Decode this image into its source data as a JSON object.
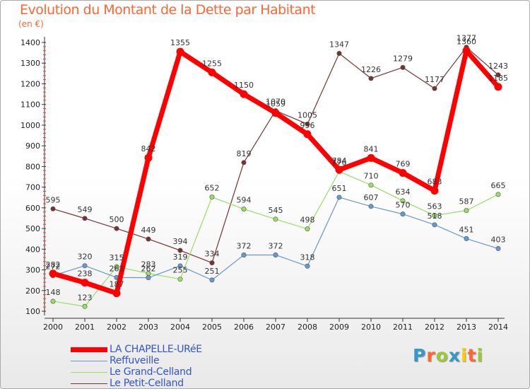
{
  "title": "Evolution du Montant de la Dette par Habitant",
  "unit": "(en €)",
  "logo": {
    "text": "Proxiti",
    "colors": [
      "#3399cc",
      "#ff6633",
      "#99cc33",
      "#3399cc",
      "#ffcc00",
      "#ff6633",
      "#99cc33"
    ]
  },
  "chart_data": {
    "type": "line",
    "x": [
      2000,
      2001,
      2002,
      2003,
      2004,
      2005,
      2006,
      2007,
      2008,
      2009,
      2010,
      2011,
      2012,
      2013,
      2014
    ],
    "ylim": [
      100,
      1400
    ],
    "yticks": [
      100,
      200,
      300,
      400,
      500,
      600,
      700,
      800,
      900,
      1000,
      1100,
      1200,
      1300,
      1400
    ],
    "grid": false,
    "legend_position": "bottom-left",
    "series": [
      {
        "name": "LA CHAPELLE-URéE",
        "color": "#ff0000",
        "width": 7,
        "values": [
          282,
          238,
          187,
          842,
          1355,
          1255,
          1150,
          1059,
          956,
          784,
          841,
          769,
          683,
          1360,
          1185
        ],
        "labels": [
          "282",
          "238",
          "187",
          "842",
          "1355",
          "1255",
          "1150",
          "1059",
          "956",
          "784",
          "841",
          "769",
          "683",
          "1360",
          "1185"
        ]
      },
      {
        "name": "Reffuveille",
        "color": "#6699cc",
        "width": 1.2,
        "values": [
          272,
          320,
          263,
          262,
          319,
          251,
          372,
          372,
          318,
          651,
          607,
          570,
          518,
          451,
          403
        ],
        "labels": [
          "272",
          "320",
          "263",
          "262",
          "319",
          "251",
          "372",
          "372",
          "318",
          "651",
          "607",
          "570",
          "518",
          "451",
          "403"
        ]
      },
      {
        "name": "Le Grand-Celland",
        "color": "#99dd66",
        "width": 1.2,
        "values": [
          148,
          123,
          315,
          283,
          255,
          652,
          594,
          545,
          498,
          776,
          710,
          634,
          563,
          587,
          665
        ],
        "labels": [
          "148",
          "123",
          "315",
          "283",
          "255",
          "652",
          "594",
          "545",
          "498",
          "776",
          "710",
          "634",
          "563",
          "587",
          "665"
        ]
      },
      {
        "name": "Le Petit-Celland",
        "color": "#773333",
        "width": 1.2,
        "values": [
          595,
          549,
          500,
          449,
          394,
          334,
          819,
          1070,
          1005,
          1347,
          1226,
          1279,
          1177,
          1377,
          1243
        ],
        "labels": [
          "595",
          "549",
          "500",
          "449",
          "394",
          "334",
          "819",
          "1070",
          "1005",
          "1347",
          "1226",
          "1279",
          "1177",
          "1377",
          "1243"
        ]
      }
    ]
  }
}
